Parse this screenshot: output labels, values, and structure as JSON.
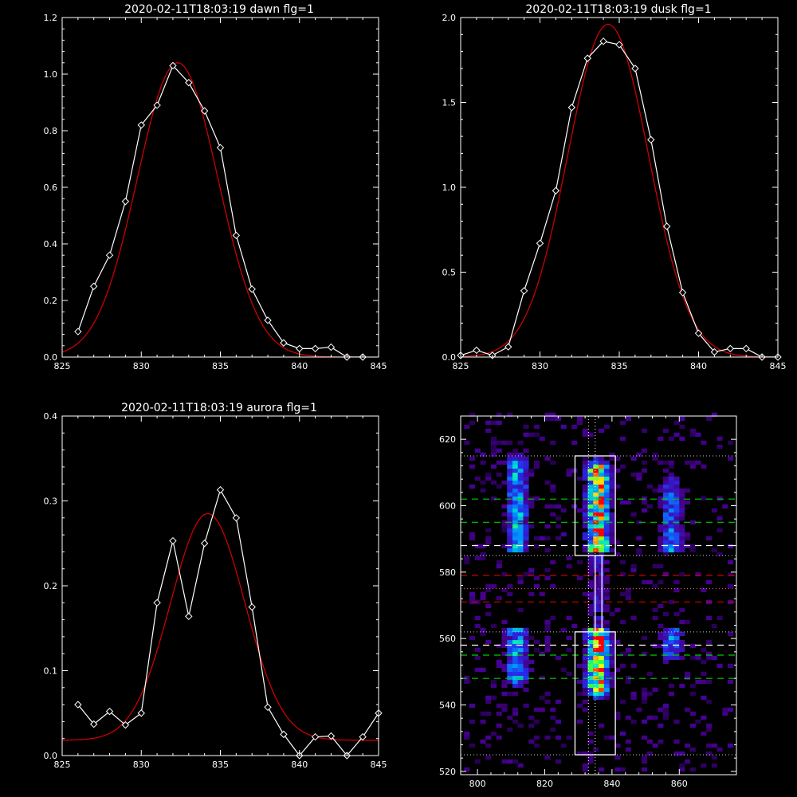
{
  "chart_data": [
    {
      "type": "line",
      "title": "2020-02-11T18:03:19 dawn flg=1",
      "xlim": [
        825,
        845
      ],
      "ylim": [
        0,
        1.2
      ],
      "xticks": [
        825,
        830,
        835,
        840,
        845
      ],
      "yticks": [
        0.0,
        0.2,
        0.4,
        0.6,
        0.8,
        1.0,
        1.2
      ],
      "ytick_labels": [
        "0.0",
        "0.2",
        "0.4",
        "0.6",
        "0.8",
        "1.0",
        "1.2"
      ],
      "series": [
        {
          "color": "#ffffff",
          "marker": "diamond",
          "x": [
            826,
            827,
            828,
            829,
            830,
            831,
            832,
            833,
            834,
            835,
            836,
            837,
            838,
            839,
            840,
            841,
            842,
            843,
            844
          ],
          "y": [
            0.09,
            0.25,
            0.36,
            0.55,
            0.82,
            0.89,
            1.03,
            0.97,
            0.87,
            0.74,
            0.43,
            0.24,
            0.13,
            0.05,
            0.03,
            0.03,
            0.035,
            0.0,
            0.0
          ]
        },
        {
          "color": "#cc0000",
          "marker": "none",
          "gauss": {
            "amp": 1.04,
            "center": 832.3,
            "sigma": 2.55,
            "offset": 0.0
          }
        }
      ]
    },
    {
      "type": "line",
      "title": "2020-02-11T18:03:19 dusk flg=1",
      "xlim": [
        825,
        845
      ],
      "ylim": [
        0,
        2.0
      ],
      "xticks": [
        825,
        830,
        835,
        840,
        845
      ],
      "yticks": [
        0.0,
        0.5,
        1.0,
        1.5,
        2.0
      ],
      "ytick_labels": [
        "0.0",
        "0.5",
        "1.0",
        "1.5",
        "2.0"
      ],
      "series": [
        {
          "color": "#ffffff",
          "marker": "diamond",
          "x": [
            825,
            826,
            827,
            828,
            829,
            830,
            831,
            832,
            833,
            834,
            835,
            836,
            837,
            838,
            839,
            840,
            841,
            842,
            843,
            844,
            845
          ],
          "y": [
            0.01,
            0.04,
            0.01,
            0.06,
            0.39,
            0.67,
            0.98,
            1.47,
            1.76,
            1.86,
            1.84,
            1.7,
            1.28,
            0.77,
            0.38,
            0.14,
            0.03,
            0.05,
            0.05,
            0.0,
            0.0
          ]
        },
        {
          "color": "#cc0000",
          "marker": "none",
          "gauss": {
            "amp": 1.96,
            "center": 834.3,
            "sigma": 2.55,
            "offset": 0.0
          }
        }
      ]
    },
    {
      "type": "line",
      "title": "2020-02-11T18:03:19 aurora flg=1",
      "xlim": [
        825,
        845
      ],
      "ylim": [
        0,
        0.4
      ],
      "xticks": [
        825,
        830,
        835,
        840,
        845
      ],
      "yticks": [
        0.0,
        0.1,
        0.2,
        0.3,
        0.4
      ],
      "ytick_labels": [
        "0.0",
        "0.1",
        "0.2",
        "0.3",
        "0.4"
      ],
      "series": [
        {
          "color": "#ffffff",
          "marker": "diamond",
          "x": [
            826,
            827,
            828,
            829,
            830,
            831,
            832,
            833,
            834,
            835,
            836,
            837,
            838,
            839,
            840,
            841,
            842,
            843,
            844,
            845
          ],
          "y": [
            0.06,
            0.037,
            0.052,
            0.036,
            0.05,
            0.18,
            0.253,
            0.164,
            0.25,
            0.313,
            0.28,
            0.175,
            0.057,
            0.025,
            0.0,
            0.022,
            0.023,
            0.0,
            0.022,
            0.05
          ]
        },
        {
          "color": "#cc0000",
          "marker": "none",
          "gauss": {
            "amp": 0.267,
            "center": 834.2,
            "sigma": 2.35,
            "offset": 0.018
          }
        }
      ]
    },
    {
      "type": "heatmap",
      "xlim": [
        795,
        877
      ],
      "ylim": [
        519,
        627
      ],
      "xticks": [
        800,
        820,
        840,
        860
      ],
      "yticks": [
        520,
        540,
        560,
        580,
        600,
        620
      ],
      "columns": [
        {
          "x": 811,
          "y_range": [
            548,
            612
          ],
          "intensity": 0.55
        },
        {
          "x": 835,
          "y_range": [
            545,
            610
          ],
          "intensity": 1.0
        },
        {
          "x": 857,
          "y_range": [
            555,
            605
          ],
          "intensity": 0.45
        }
      ],
      "boxes": [
        {
          "x": [
            829,
            841
          ],
          "y": [
            585,
            615
          ],
          "color": "#ffffff"
        },
        {
          "x": [
            835,
            837
          ],
          "y": [
            562,
            585
          ],
          "color": "#ffffff"
        },
        {
          "x": [
            829,
            841
          ],
          "y": [
            525,
            562
          ],
          "color": "#ffffff"
        }
      ],
      "vlines_dotted": [
        {
          "x": 833,
          "color": "#ffffff"
        },
        {
          "x": 835,
          "color": "#ffffff"
        }
      ],
      "hlines_dotted": [
        {
          "y": 615,
          "color": "#cccccc"
        },
        {
          "y": 585,
          "color": "#cccccc"
        },
        {
          "y": 575,
          "color": "#ff6666"
        },
        {
          "y": 562,
          "color": "#cccccc"
        },
        {
          "y": 525,
          "color": "#cccccc"
        }
      ],
      "hlines_dashed": [
        {
          "y": 602,
          "color": "#00cc00"
        },
        {
          "y": 595,
          "color": "#00cc00"
        },
        {
          "y": 588,
          "color": "#ffffff"
        },
        {
          "y": 579,
          "color": "#cc0000"
        },
        {
          "y": 571,
          "color": "#cc0000"
        },
        {
          "y": 558,
          "color": "#ffffff"
        },
        {
          "y": 555,
          "color": "#00cc00"
        },
        {
          "y": 548,
          "color": "#00cc00"
        }
      ]
    }
  ]
}
